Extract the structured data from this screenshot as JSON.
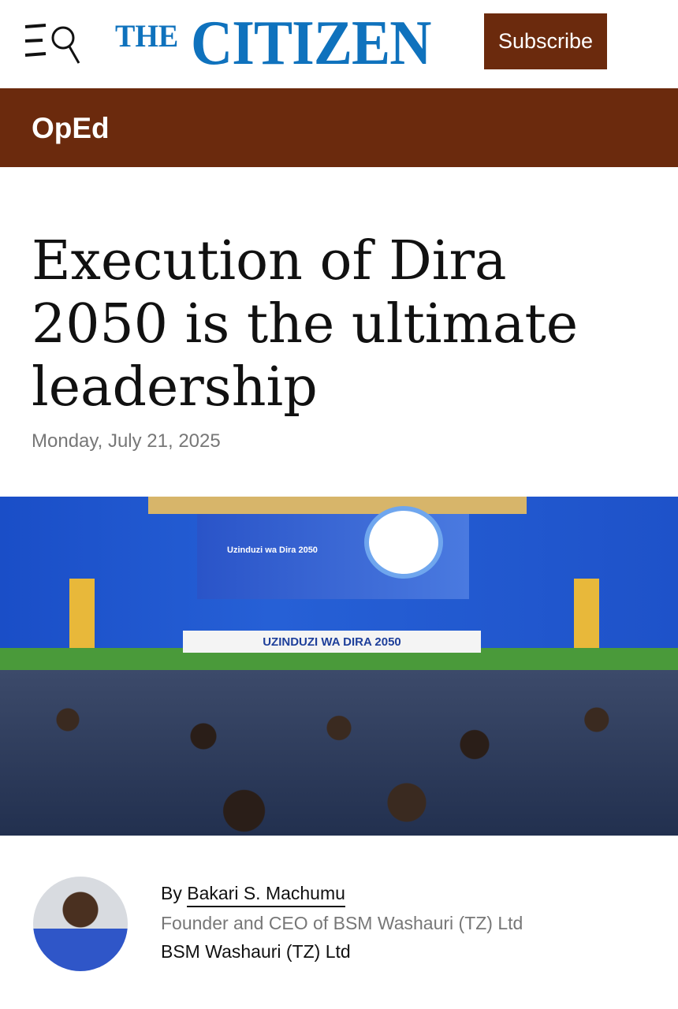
{
  "header": {
    "logo_the": "THE",
    "logo_citizen": "CITIZEN",
    "subscribe_label": "Subscribe",
    "menu_icon": "menu-search-icon"
  },
  "section": {
    "label": "OpEd"
  },
  "article": {
    "title": "Execution of Dira 2050 is the ultimate leadership",
    "date": "Monday, July 21, 2025",
    "image": {
      "screen_text": "Uzinduzi wa  Dira 2050",
      "banner_text": "UZINDUZI WA DIRA 2050"
    },
    "author": {
      "by": "By",
      "name": "Bakari S. Machumu",
      "role": "Founder and CEO of BSM Washauri (TZ) Ltd",
      "organization": "BSM Washauri (TZ) Ltd"
    }
  },
  "colors": {
    "brand_blue": "#0f72bd",
    "brand_brown": "#6b2a0d"
  }
}
